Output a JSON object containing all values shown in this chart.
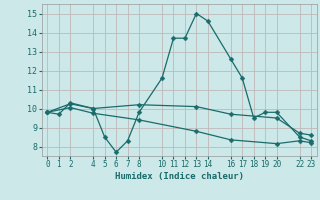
{
  "title": "",
  "xlabel": "Humidex (Indice chaleur)",
  "background_color": "#cce8e8",
  "grid_color": "#c0d8d8",
  "line_color": "#1a6b6b",
  "xlim": [
    -0.5,
    23.5
  ],
  "ylim": [
    7.5,
    15.5
  ],
  "yticks": [
    8,
    9,
    10,
    11,
    12,
    13,
    14,
    15
  ],
  "xtick_positions": [
    0,
    1,
    2,
    4,
    5,
    6,
    7,
    8,
    10,
    11,
    12,
    13,
    14,
    16,
    17,
    18,
    19,
    20,
    22,
    23
  ],
  "xtick_labels": [
    "0",
    "1",
    "2",
    "4",
    "5",
    "6",
    "7",
    "8",
    "10",
    "11",
    "12",
    "13",
    "14",
    "16",
    "17",
    "18",
    "19",
    "20",
    "22",
    "23"
  ],
  "line1_x": [
    0,
    1,
    2,
    4,
    5,
    6,
    7,
    8,
    10,
    11,
    12,
    13,
    14,
    16,
    17,
    18,
    19,
    20,
    22,
    23
  ],
  "line1_y": [
    9.8,
    9.7,
    10.3,
    10.0,
    8.5,
    7.7,
    8.3,
    9.8,
    11.6,
    13.7,
    13.7,
    15.0,
    14.6,
    12.6,
    11.6,
    9.5,
    9.8,
    9.8,
    8.5,
    8.3
  ],
  "line2_x": [
    0,
    2,
    4,
    8,
    13,
    16,
    20,
    22,
    23
  ],
  "line2_y": [
    9.8,
    10.25,
    10.0,
    10.2,
    10.1,
    9.7,
    9.5,
    8.7,
    8.6
  ],
  "line3_x": [
    0,
    2,
    4,
    8,
    13,
    16,
    20,
    22,
    23
  ],
  "line3_y": [
    9.8,
    10.05,
    9.75,
    9.4,
    8.8,
    8.35,
    8.15,
    8.3,
    8.2
  ],
  "marker_size": 2.5,
  "line_width": 0.9
}
